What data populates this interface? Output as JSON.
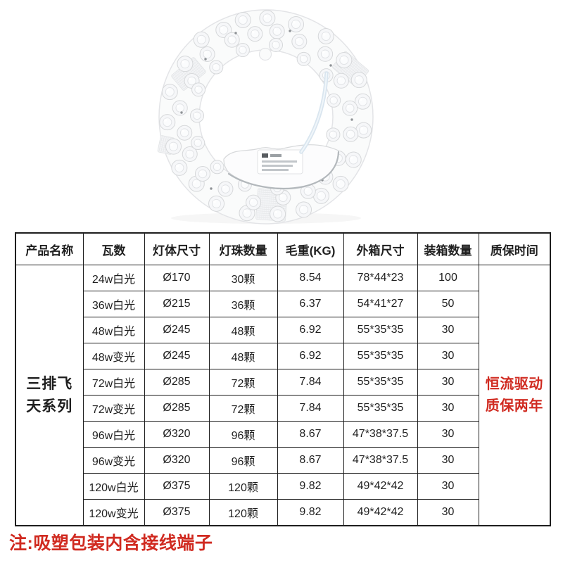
{
  "table": {
    "headers": [
      "产品名称",
      "瓦数",
      "灯体尺寸",
      "灯珠数量",
      "毛重(KG)",
      "外箱尺寸",
      "装箱数量",
      "质保时间"
    ],
    "series_name_lines": [
      "三排飞",
      "天系列"
    ],
    "warranty_lines": [
      "恒流驱动",
      "质保两年"
    ],
    "rows": [
      {
        "wattage": "24w白光",
        "body_size": "Ø170",
        "beads": "30颗",
        "gross_weight": "8.54",
        "box_size": "78*44*23",
        "pack_qty": "100"
      },
      {
        "wattage": "36w白光",
        "body_size": "Ø215",
        "beads": "36颗",
        "gross_weight": "6.37",
        "box_size": "54*41*27",
        "pack_qty": "50"
      },
      {
        "wattage": "48w白光",
        "body_size": "Ø245",
        "beads": "48颗",
        "gross_weight": "6.92",
        "box_size": "55*35*35",
        "pack_qty": "30"
      },
      {
        "wattage": "48w变光",
        "body_size": "Ø245",
        "beads": "48颗",
        "gross_weight": "6.92",
        "box_size": "55*35*35",
        "pack_qty": "30"
      },
      {
        "wattage": "72w白光",
        "body_size": "Ø285",
        "beads": "72颗",
        "gross_weight": "7.84",
        "box_size": "55*35*35",
        "pack_qty": "30"
      },
      {
        "wattage": "72w变光",
        "body_size": "Ø285",
        "beads": "72颗",
        "gross_weight": "7.84",
        "box_size": "55*35*35",
        "pack_qty": "30"
      },
      {
        "wattage": "96w白光",
        "body_size": "Ø320",
        "beads": "96颗",
        "gross_weight": "8.67",
        "box_size": "47*38*37.5",
        "pack_qty": "30"
      },
      {
        "wattage": "96w变光",
        "body_size": "Ø320",
        "beads": "96颗",
        "gross_weight": "8.67",
        "box_size": "47*38*37.5",
        "pack_qty": "30"
      },
      {
        "wattage": "120w白光",
        "body_size": "Ø375",
        "beads": "120颗",
        "gross_weight": "9.82",
        "box_size": "49*42*42",
        "pack_qty": "30"
      },
      {
        "wattage": "120w变光",
        "body_size": "Ø375",
        "beads": "120颗",
        "gross_weight": "9.82",
        "box_size": "49*42*42",
        "pack_qty": "30"
      }
    ]
  },
  "footnote": "注:吸塑包装内含接线端子",
  "colors": {
    "accent_red": "#d02a20",
    "table_border": "#1e1e1e",
    "text": "#1f1f1f"
  }
}
